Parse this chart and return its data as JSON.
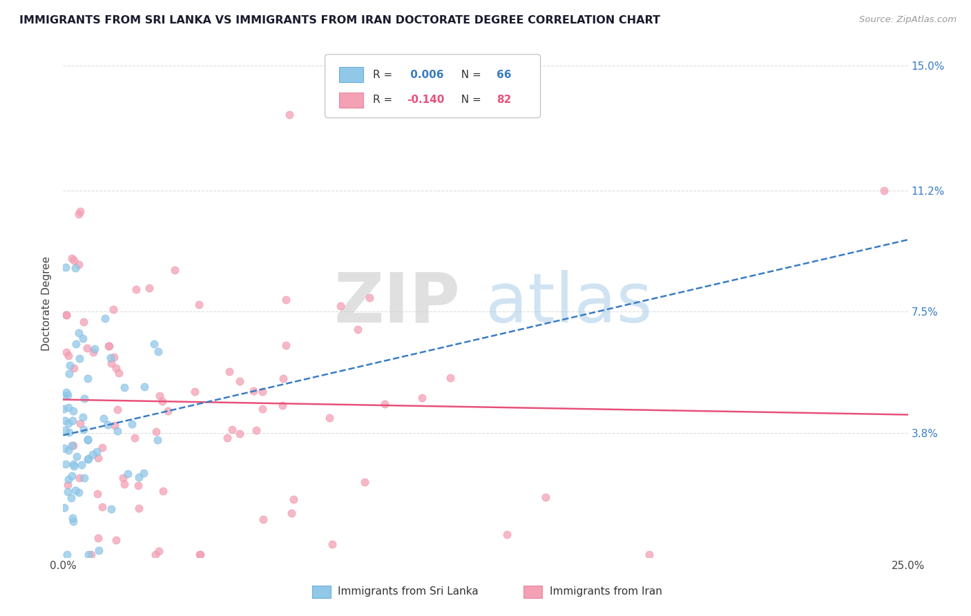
{
  "title": "IMMIGRANTS FROM SRI LANKA VS IMMIGRANTS FROM IRAN DOCTORATE DEGREE CORRELATION CHART",
  "source": "Source: ZipAtlas.com",
  "ylabel": "Doctorate Degree",
  "xlim": [
    0.0,
    0.25
  ],
  "ylim": [
    0.0,
    0.155
  ],
  "ytick_vals": [
    0.038,
    0.075,
    0.112,
    0.15
  ],
  "ytick_labels": [
    "3.8%",
    "7.5%",
    "11.2%",
    "15.0%"
  ],
  "color_sri_lanka": "#91C8E8",
  "color_iran": "#F4A0B5",
  "trendline_color_sri_lanka": "#3A7CC4",
  "trendline_color_iran": "#E8507A",
  "grid_color": "#DDDDDD",
  "background_color": "#FFFFFF"
}
